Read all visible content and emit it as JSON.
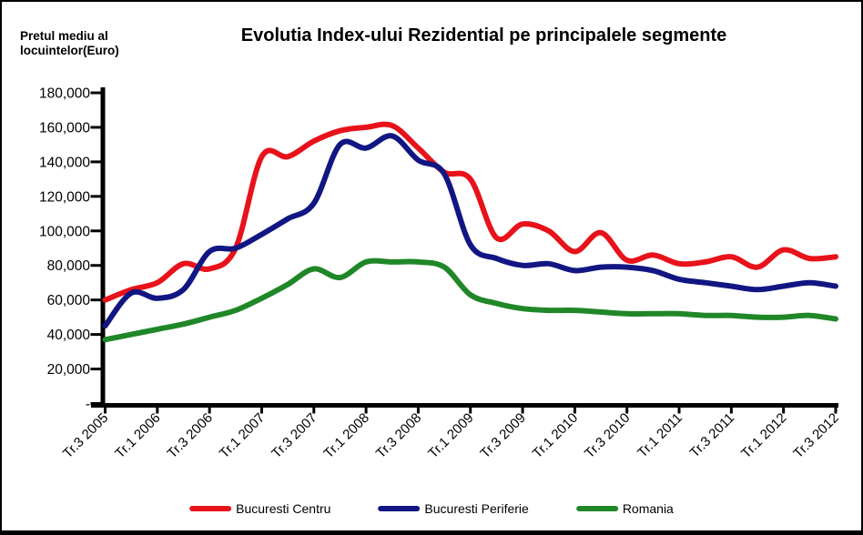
{
  "title": "Evolutia Index-ului Rezidential pe principalele segmente",
  "y_axis_unit_label": "Pretul mediu al\nlocuintelor(Euro)",
  "chart_data": {
    "type": "line",
    "smooth": true,
    "grid": false,
    "legend_position": "bottom",
    "x_note": "quarterly points, tick label shown every 2nd quarter",
    "x_tick_labels": [
      "Tr.3 2005",
      "Tr.1 2006",
      "Tr.3 2006",
      "Tr.1 2007",
      "Tr.3 2007",
      "Tr.1 2008",
      "Tr.3 2008",
      "Tr.1 2009",
      "Tr.3 2009",
      "Tr.1 2010",
      "Tr.3 2010",
      "Tr.1 2011",
      "Tr.3 2011",
      "Tr.1 2012",
      "Tr.3 2012"
    ],
    "points_per_tick": 2,
    "y_tick_labels_top_to_bottom": [
      "180,000",
      "160,000",
      "140,000",
      "120,000",
      "100,000",
      "80,000",
      "60,000",
      "40,000",
      "20,000",
      "-"
    ],
    "ylim": [
      0,
      180000
    ],
    "y_tick_step": 20000,
    "series": [
      {
        "name": "Bucuresti Centru",
        "color": "#e8121a",
        "values": [
          60000,
          66000,
          70000,
          81000,
          78000,
          90000,
          143000,
          143000,
          152000,
          158000,
          160000,
          161000,
          148000,
          134000,
          130000,
          96000,
          104000,
          100000,
          88000,
          99000,
          83000,
          86000,
          81000,
          82000,
          85000,
          79000,
          89000,
          84000,
          85000
        ]
      },
      {
        "name": "Bucuresti Periferie",
        "color": "#121682",
        "values": [
          45000,
          64000,
          61000,
          66000,
          88000,
          90000,
          98000,
          107000,
          116000,
          150000,
          148000,
          155000,
          141000,
          133000,
          92000,
          84000,
          80000,
          81000,
          77000,
          79000,
          79000,
          77000,
          72000,
          70000,
          68000,
          66000,
          68000,
          70000,
          68000
        ]
      },
      {
        "name": "Romania",
        "color": "#208728",
        "values": [
          37000,
          40000,
          43000,
          46000,
          50000,
          54000,
          61000,
          69000,
          78000,
          73000,
          82000,
          82000,
          82000,
          79000,
          63000,
          58000,
          55000,
          54000,
          54000,
          53000,
          52000,
          52000,
          52000,
          51000,
          51000,
          50000,
          50000,
          51000,
          49000
        ]
      }
    ]
  }
}
